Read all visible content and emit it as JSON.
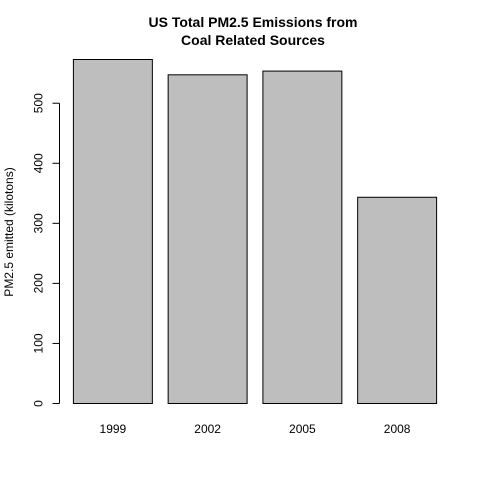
{
  "chart_data": {
    "type": "bar",
    "title_lines": [
      "US Total PM2.5 Emissions from",
      "Coal Related Sources"
    ],
    "xlabel": "",
    "ylabel": "PM2.5 emitted (kilotons)",
    "categories": [
      "1999",
      "2002",
      "2005",
      "2008"
    ],
    "values": [
      572.8,
      547.3,
      553.5,
      343.4
    ],
    "y_ticks": [
      0,
      100,
      200,
      300,
      400,
      500
    ],
    "ylim": [
      0,
      572.8
    ],
    "grid": false,
    "legend": "none",
    "bar_color": "#bebebe",
    "bar_border_color": "#000000"
  }
}
